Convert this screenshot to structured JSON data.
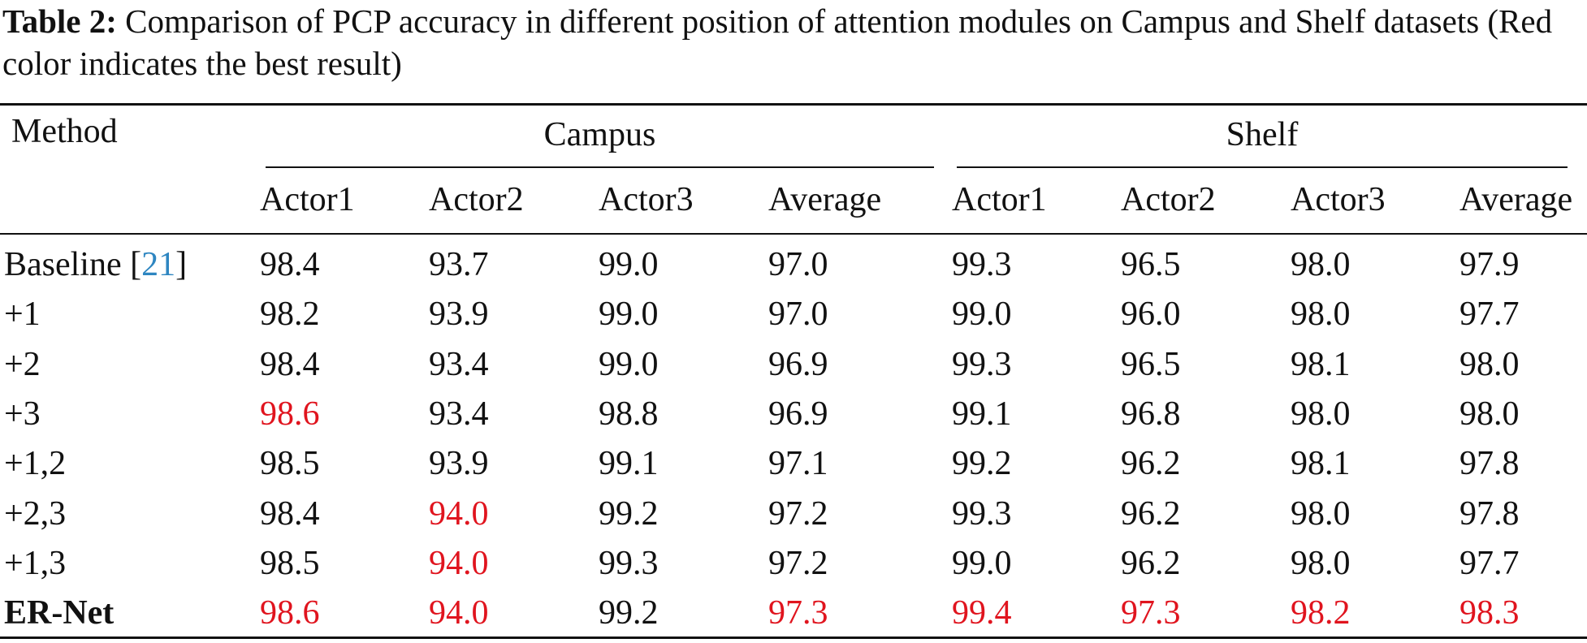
{
  "caption": {
    "label": "Table 2:",
    "text": " Comparison of PCP accuracy in different position of attention modules on Campus and Shelf datasets (Red color indicates the best result)"
  },
  "table": {
    "method_header": "Method",
    "groups": [
      "Campus",
      "Shelf"
    ],
    "columns": [
      "Actor1",
      "Actor2",
      "Actor3",
      "Average",
      "Actor1",
      "Actor2",
      "Actor3",
      "Average"
    ],
    "highlight_color": "#e0141e",
    "citation_color": "#2e86c1",
    "rows": [
      {
        "method": "Baseline [",
        "cite": "21",
        "method_suffix": "]",
        "values": [
          "98.4",
          "93.7",
          "99.0",
          "97.0",
          "99.3",
          "96.5",
          "98.0",
          "97.9"
        ],
        "best": [
          false,
          false,
          false,
          false,
          false,
          false,
          false,
          false
        ],
        "bold": false
      },
      {
        "method": "+1",
        "values": [
          "98.2",
          "93.9",
          "99.0",
          "97.0",
          "99.0",
          "96.0",
          "98.0",
          "97.7"
        ],
        "best": [
          false,
          false,
          false,
          false,
          false,
          false,
          false,
          false
        ],
        "bold": false
      },
      {
        "method": "+2",
        "values": [
          "98.4",
          "93.4",
          "99.0",
          "96.9",
          "99.3",
          "96.5",
          "98.1",
          "98.0"
        ],
        "best": [
          false,
          false,
          false,
          false,
          false,
          false,
          false,
          false
        ],
        "bold": false
      },
      {
        "method": "+3",
        "values": [
          "98.6",
          "93.4",
          "98.8",
          "96.9",
          "99.1",
          "96.8",
          "98.0",
          "98.0"
        ],
        "best": [
          true,
          false,
          false,
          false,
          false,
          false,
          false,
          false
        ],
        "bold": false
      },
      {
        "method": "+1,2",
        "values": [
          "98.5",
          "93.9",
          "99.1",
          "97.1",
          "99.2",
          "96.2",
          "98.1",
          "97.8"
        ],
        "best": [
          false,
          false,
          false,
          false,
          false,
          false,
          false,
          false
        ],
        "bold": false
      },
      {
        "method": "+2,3",
        "values": [
          "98.4",
          "94.0",
          "99.2",
          "97.2",
          "99.3",
          "96.2",
          "98.0",
          "97.8"
        ],
        "best": [
          false,
          true,
          false,
          false,
          false,
          false,
          false,
          false
        ],
        "bold": false
      },
      {
        "method": "+1,3",
        "values": [
          "98.5",
          "94.0",
          "99.3",
          "97.2",
          "99.0",
          "96.2",
          "98.0",
          "97.7"
        ],
        "best": [
          false,
          true,
          false,
          false,
          false,
          false,
          false,
          false
        ],
        "bold": false
      },
      {
        "method": "ER-Net",
        "values": [
          "98.6",
          "94.0",
          "99.2",
          "97.3",
          "99.4",
          "97.3",
          "98.2",
          "98.3"
        ],
        "best": [
          true,
          true,
          false,
          true,
          true,
          true,
          true,
          true
        ],
        "bold": true
      }
    ]
  }
}
